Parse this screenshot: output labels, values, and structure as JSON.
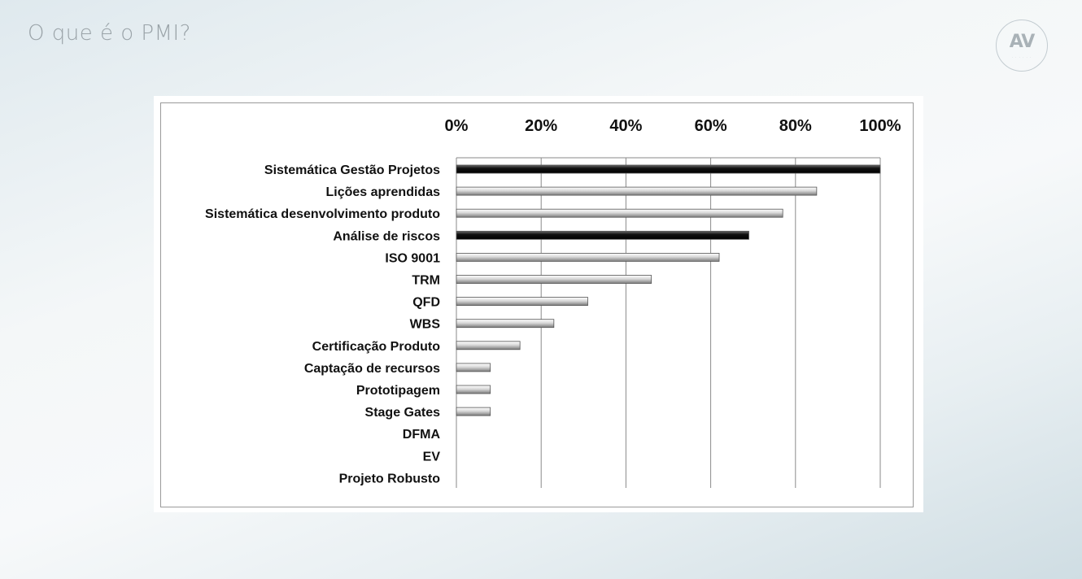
{
  "slide": {
    "title": "O que é o PMI?"
  },
  "logo": {
    "text": "AV",
    "icon": "av-logo"
  },
  "chart_data": {
    "type": "bar",
    "orientation": "horizontal",
    "title": "",
    "xlabel": "",
    "ylabel": "",
    "xlim": [
      0,
      100
    ],
    "x_ticks": [
      "0%",
      "20%",
      "40%",
      "60%",
      "80%",
      "100%"
    ],
    "x_axis_position": "top",
    "grid": true,
    "legend": "none",
    "categories": [
      "Sistemática Gestão Projetos",
      "Lições aprendidas",
      "Sistemática desenvolvimento produto",
      "Análise de riscos",
      "ISO 9001",
      "TRM",
      "QFD",
      "WBS",
      "Certificação Produto",
      "Captação de recursos",
      "Prototipagem",
      "Stage Gates",
      "DFMA",
      "EV",
      "Projeto Robusto"
    ],
    "values": [
      100,
      85,
      77,
      69,
      62,
      46,
      31,
      23,
      15,
      8,
      8,
      8,
      0,
      0,
      0
    ],
    "highlight": [
      true,
      false,
      false,
      true,
      false,
      false,
      false,
      false,
      false,
      false,
      false,
      false,
      false,
      false,
      false
    ],
    "colors": {
      "highlight_bar": "#111111",
      "normal_bar": "#d8d8d8",
      "bar_edge": "#555555",
      "grid": "#8a8a8a"
    }
  }
}
